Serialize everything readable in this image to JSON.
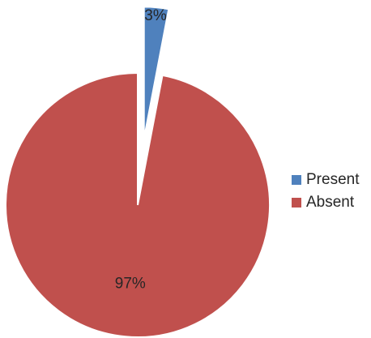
{
  "chart_data": {
    "type": "pie",
    "title": "",
    "categories": [
      "Present",
      "Absent"
    ],
    "values": [
      3,
      97
    ],
    "labels": [
      "3%",
      "97%"
    ],
    "colors": [
      "#4f81bd",
      "#c0504d"
    ],
    "exploded": true,
    "legend_position": "right"
  }
}
